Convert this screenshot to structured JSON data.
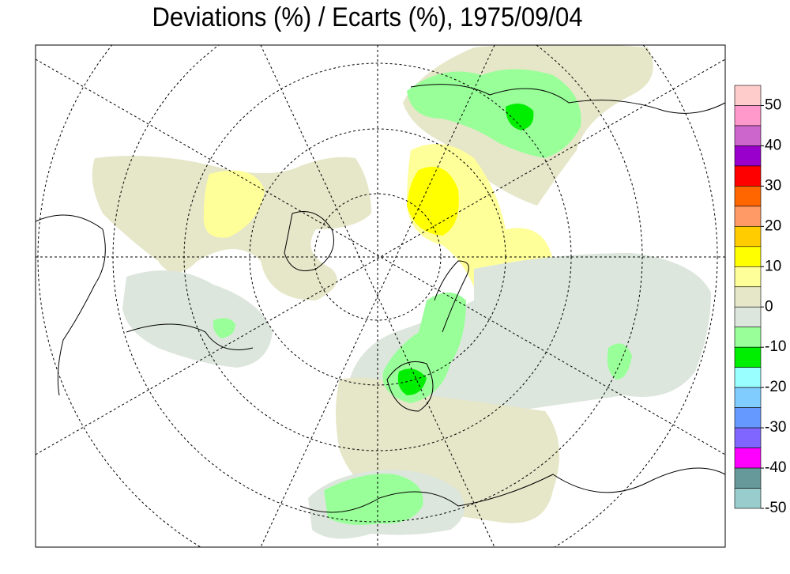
{
  "title": "Deviations (%) / Ecarts (%), 1975/09/04",
  "colorbar": {
    "bounds": [
      55,
      50,
      45,
      40,
      35,
      30,
      25,
      20,
      15,
      10,
      5,
      0,
      -5,
      -10,
      -15,
      -20,
      -25,
      -30,
      -35,
      -40,
      -45,
      -50
    ],
    "colors": [
      "#ffcccc",
      "#ff99cc",
      "#cc66cc",
      "#9900cc",
      "#ff0000",
      "#ff6600",
      "#ff9966",
      "#ffcc00",
      "#ffff00",
      "#ffff99",
      "#e6e6c8",
      "#dde6dd",
      "#99ff99",
      "#00ee00",
      "#99ffff",
      "#80ccff",
      "#6699ff",
      "#8066ff",
      "#ff00ff",
      "#669999",
      "#99cccc"
    ],
    "ticks": [
      50,
      40,
      30,
      20,
      10,
      0,
      -10,
      -20,
      -30,
      -40,
      -50
    ]
  }
}
